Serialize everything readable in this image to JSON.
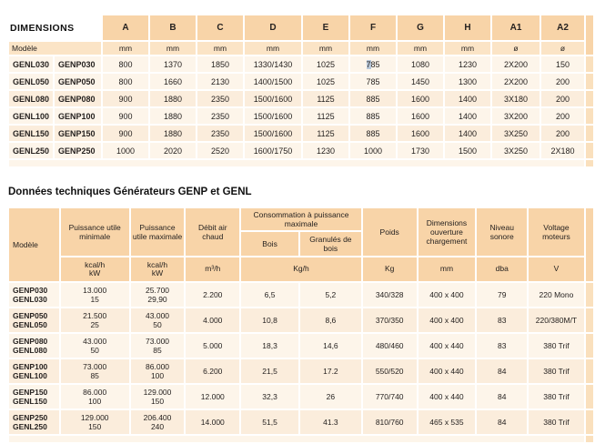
{
  "colors": {
    "header-peach": "#f8d4a8",
    "subheader-peach": "#fbe4c6",
    "row-light": "#fdf5ea",
    "row-dark": "#fbeddc",
    "stub-peach": "#fae0bd",
    "selection": "#b7c7d9",
    "text": "#262220"
  },
  "dimensions_table": {
    "title": "DIMENSIONS",
    "model_label": "Modèle",
    "col_headers": [
      "A",
      "B",
      "C",
      "D",
      "E",
      "F",
      "G",
      "H",
      "A1",
      "A2"
    ],
    "unit_row": [
      "mm",
      "mm",
      "mm",
      "mm",
      "mm",
      "mm",
      "mm",
      "mm",
      "ø",
      "ø"
    ],
    "rows": [
      {
        "model_genl": "GENL030",
        "model_genp": "GENP030",
        "values": [
          "800",
          "1370",
          "1850",
          "1330/1430",
          "1025",
          "785",
          "1080",
          "1230",
          "2X200",
          "150"
        ],
        "highlight": {
          "col": 5,
          "text": "7"
        }
      },
      {
        "model_genl": "GENL050",
        "model_genp": "GENP050",
        "values": [
          "800",
          "1660",
          "2130",
          "1400/1500",
          "1025",
          "785",
          "1450",
          "1300",
          "2X200",
          "200"
        ]
      },
      {
        "model_genl": "GENL080",
        "model_genp": "GENP080",
        "values": [
          "900",
          "1880",
          "2350",
          "1500/1600",
          "1125",
          "885",
          "1600",
          "1400",
          "3X180",
          "200"
        ]
      },
      {
        "model_genl": "GENL100",
        "model_genp": "GENP100",
        "values": [
          "900",
          "1880",
          "2350",
          "1500/1600",
          "1125",
          "885",
          "1600",
          "1400",
          "3X200",
          "200"
        ]
      },
      {
        "model_genl": "GENL150",
        "model_genp": "GENP150",
        "values": [
          "900",
          "1880",
          "2350",
          "1500/1600",
          "1125",
          "885",
          "1600",
          "1400",
          "3X250",
          "200"
        ]
      },
      {
        "model_genl": "GENL250",
        "model_genp": "GENP250",
        "values": [
          "1000",
          "2020",
          "2520",
          "1600/1750",
          "1230",
          "1000",
          "1730",
          "1500",
          "3X250",
          "2X180"
        ]
      }
    ]
  },
  "tech_table": {
    "title": "Données techniques Générateurs GENP et GENL",
    "header": {
      "model": "Modèle",
      "puissance_min": "Puissance utile minimale",
      "puissance_max": "Puissance utile maximale",
      "debit_air": "Débit air chaud",
      "consommation": "Consommation à puissance maximale",
      "bois": "Bois",
      "granules": "Granulés de bois",
      "poids": "Poids",
      "dimensions_ouverture": "Dimensions ouverture chargement",
      "niveau_sonore": "Niveau sonore",
      "voltage_moteurs": "Voltage moteurs"
    },
    "units": {
      "pmin": [
        "kcal/h",
        "kW"
      ],
      "pmax": [
        "kcal/h",
        "kW"
      ],
      "debit": "m³/h",
      "consommation": "Kg/h",
      "poids": "Kg",
      "dimensions": "mm",
      "niveau": "dba",
      "voltage": "V"
    },
    "rows": [
      {
        "models": [
          "GENP030",
          "GENL030"
        ],
        "pmin": [
          "13.000",
          "15"
        ],
        "pmax": [
          "25.700",
          "29,90"
        ],
        "debit": "2.200",
        "bois": "6,5",
        "granules": "5,2",
        "poids": "340/328",
        "dimensions": "400 x 400",
        "niveau": "79",
        "voltage": "220 Mono"
      },
      {
        "models": [
          "GENP050",
          "GENL050"
        ],
        "pmin": [
          "21.500",
          "25"
        ],
        "pmax": [
          "43.000",
          "50"
        ],
        "debit": "4.000",
        "bois": "10,8",
        "granules": "8,6",
        "poids": "370/350",
        "dimensions": "400 x 400",
        "niveau": "83",
        "voltage": "220/380M/T"
      },
      {
        "models": [
          "GENP080",
          "GENL080"
        ],
        "pmin": [
          "43.000",
          "50"
        ],
        "pmax": [
          "73.000",
          "85"
        ],
        "debit": "5.000",
        "bois": "18,3",
        "granules": "14,6",
        "poids": "480/460",
        "dimensions": "400 x 440",
        "niveau": "83",
        "voltage": "380 Trif"
      },
      {
        "models": [
          "GENP100",
          "GENL100"
        ],
        "pmin": [
          "73.000",
          "85"
        ],
        "pmax": [
          "86.000",
          "100"
        ],
        "debit": "6.200",
        "bois": "21,5",
        "granules": "17.2",
        "poids": "550/520",
        "dimensions": "400 x 440",
        "niveau": "84",
        "voltage": "380 Trif"
      },
      {
        "models": [
          "GENP150",
          "GENL150"
        ],
        "pmin": [
          "86.000",
          "100"
        ],
        "pmax": [
          "129.000",
          "150"
        ],
        "debit": "12.000",
        "bois": "32,3",
        "granules": "26",
        "poids": "770/740",
        "dimensions": "400 x 440",
        "niveau": "84",
        "voltage": "380 Trif"
      },
      {
        "models": [
          "GENP250",
          "GENL250"
        ],
        "pmin": [
          "129.000",
          "150"
        ],
        "pmax": [
          "206.400",
          "240"
        ],
        "debit": "14.000",
        "bois": "51,5",
        "granules": "41.3",
        "poids": "810/760",
        "dimensions": "465 x 535",
        "niveau": "84",
        "voltage": "380 Trif"
      }
    ]
  }
}
